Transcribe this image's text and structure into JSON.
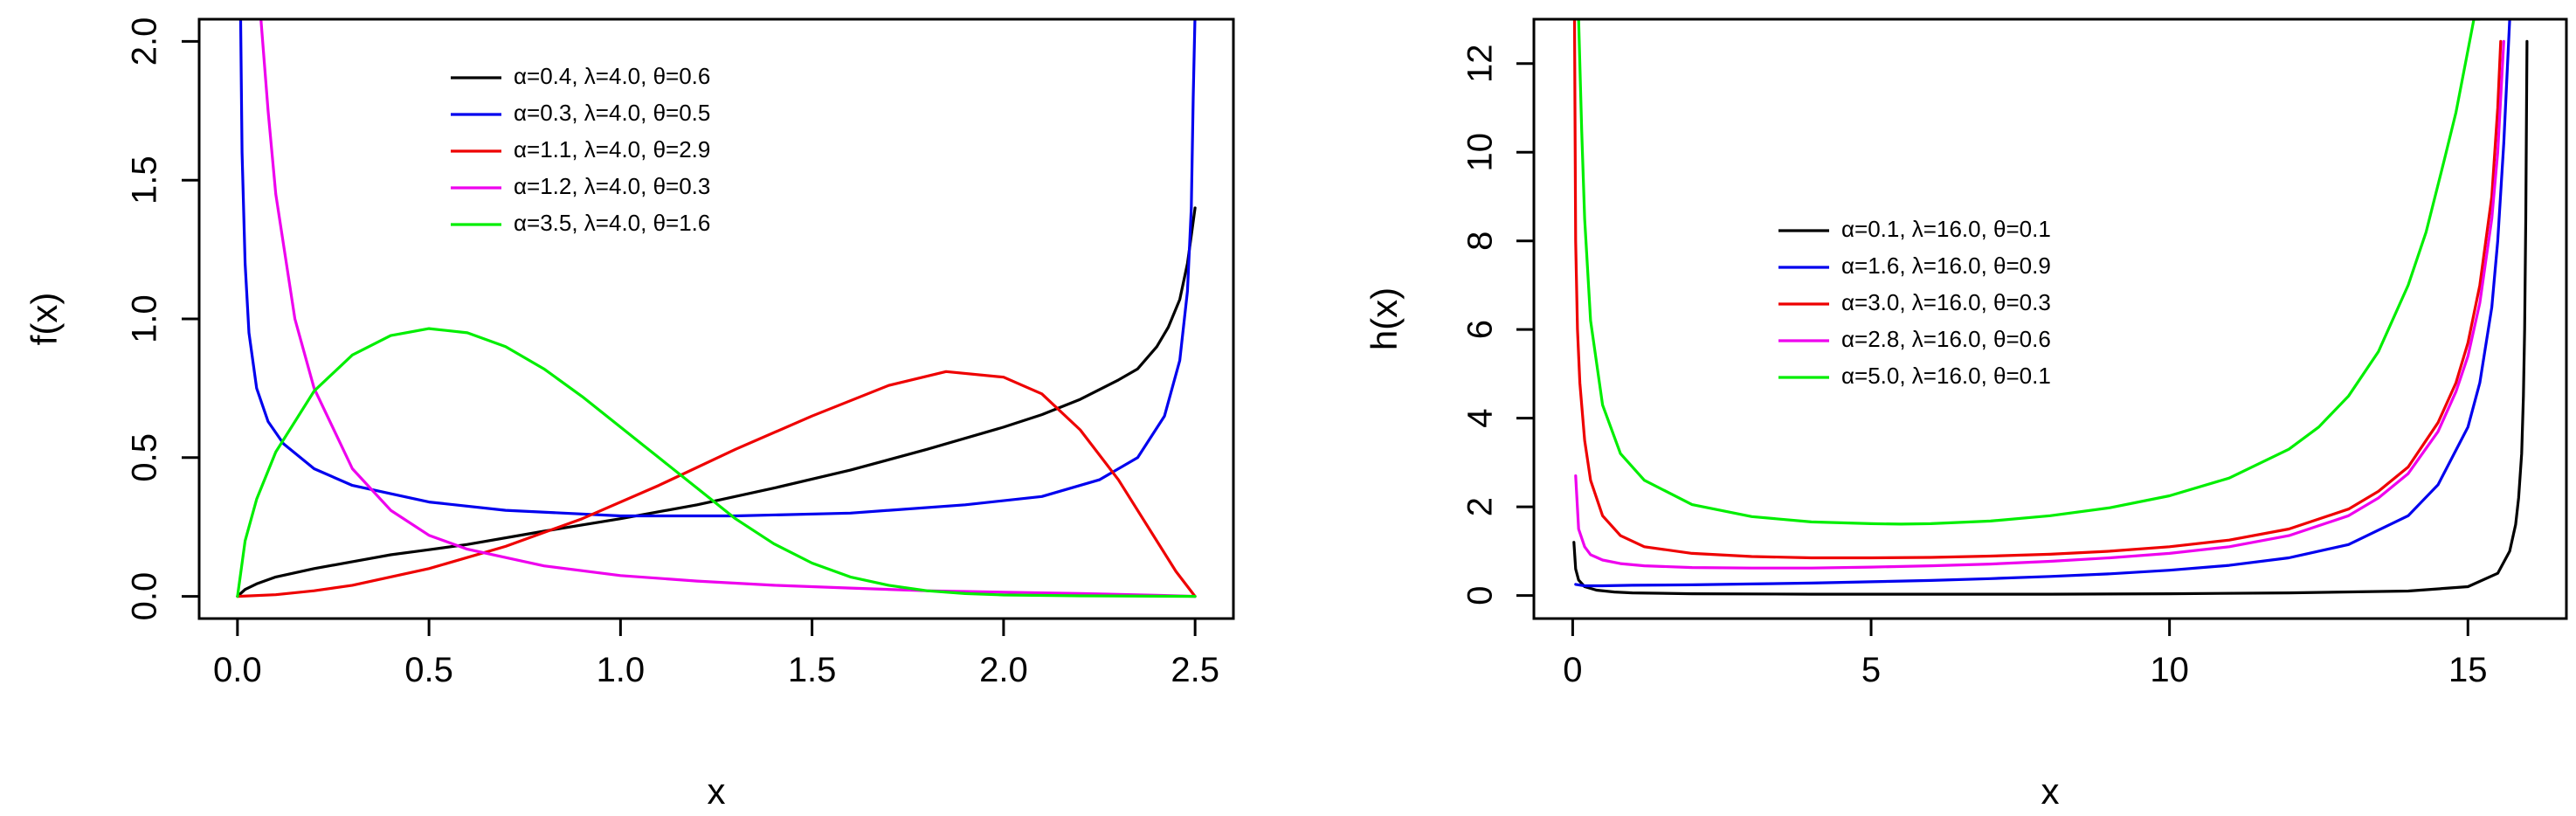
{
  "chart_data": [
    {
      "type": "line",
      "xlabel": "x",
      "ylabel": "f(x)",
      "xlim": [
        -0.1,
        2.6
      ],
      "ylim": [
        -0.08,
        2.08
      ],
      "xticks": [
        "0.0",
        "0.5",
        "1.0",
        "1.5",
        "2.0",
        "2.5"
      ],
      "yticks": [
        "0.0",
        "0.5",
        "1.0",
        "1.5",
        "2.0"
      ],
      "legend_position": "top-center",
      "series": [
        {
          "name": "α=0.4, λ=4.0, θ=0.6",
          "color": "#000000",
          "x": [
            0,
            0.02,
            0.05,
            0.1,
            0.2,
            0.3,
            0.4,
            0.5,
            0.6,
            0.8,
            1.0,
            1.2,
            1.4,
            1.6,
            1.8,
            2.0,
            2.1,
            2.2,
            2.3,
            2.35,
            2.4,
            2.43,
            2.46,
            2.48,
            2.49,
            2.5
          ],
          "y": [
            0,
            0.025,
            0.045,
            0.07,
            0.1,
            0.125,
            0.15,
            0.168,
            0.187,
            0.235,
            0.28,
            0.33,
            0.39,
            0.455,
            0.53,
            0.61,
            0.655,
            0.71,
            0.78,
            0.82,
            0.9,
            0.97,
            1.07,
            1.2,
            1.3,
            1.4
          ]
        },
        {
          "name": "α=0.3, λ=4.0, θ=0.5",
          "color": "#0000ee",
          "x": [
            0.008,
            0.012,
            0.02,
            0.03,
            0.05,
            0.08,
            0.12,
            0.2,
            0.3,
            0.5,
            0.7,
            1.0,
            1.3,
            1.6,
            1.9,
            2.1,
            2.25,
            2.35,
            2.42,
            2.46,
            2.48,
            2.49,
            2.495,
            2.5
          ],
          "y": [
            2.1,
            1.6,
            1.2,
            0.95,
            0.75,
            0.63,
            0.55,
            0.46,
            0.4,
            0.34,
            0.31,
            0.29,
            0.29,
            0.3,
            0.33,
            0.36,
            0.42,
            0.5,
            0.65,
            0.85,
            1.1,
            1.4,
            1.8,
            2.1
          ]
        },
        {
          "name": "α=1.1, λ=4.0, θ=2.9",
          "color": "#ee0000",
          "x": [
            0,
            0.1,
            0.2,
            0.3,
            0.5,
            0.7,
            0.9,
            1.1,
            1.3,
            1.5,
            1.7,
            1.85,
            2.0,
            2.1,
            2.2,
            2.3,
            2.4,
            2.45,
            2.5
          ],
          "y": [
            0,
            0.006,
            0.02,
            0.04,
            0.1,
            0.18,
            0.28,
            0.4,
            0.53,
            0.65,
            0.76,
            0.81,
            0.79,
            0.73,
            0.6,
            0.42,
            0.2,
            0.09,
            0
          ]
        },
        {
          "name": "α=1.2, λ=4.0, θ=0.3",
          "color": "#ee00ee",
          "x": [
            0.06,
            0.08,
            0.1,
            0.15,
            0.2,
            0.3,
            0.4,
            0.5,
            0.6,
            0.8,
            1.0,
            1.2,
            1.4,
            1.6,
            1.8,
            2.0,
            2.2,
            2.4,
            2.5
          ],
          "y": [
            2.1,
            1.75,
            1.45,
            1.0,
            0.75,
            0.46,
            0.31,
            0.22,
            0.17,
            0.11,
            0.075,
            0.055,
            0.04,
            0.03,
            0.02,
            0.015,
            0.01,
            0.004,
            0
          ]
        },
        {
          "name": "α=3.5, λ=4.0, θ=1.6",
          "color": "#00ee00",
          "x": [
            0,
            0.02,
            0.05,
            0.1,
            0.2,
            0.3,
            0.4,
            0.5,
            0.6,
            0.7,
            0.8,
            0.9,
            1.0,
            1.1,
            1.2,
            1.3,
            1.4,
            1.5,
            1.6,
            1.7,
            1.8,
            1.9,
            2.0,
            2.2,
            2.5
          ],
          "y": [
            0,
            0.2,
            0.35,
            0.52,
            0.74,
            0.87,
            0.94,
            0.965,
            0.95,
            0.9,
            0.82,
            0.72,
            0.61,
            0.5,
            0.39,
            0.28,
            0.19,
            0.12,
            0.07,
            0.04,
            0.02,
            0.01,
            0.005,
            0.002,
            0
          ]
        }
      ]
    },
    {
      "type": "line",
      "xlabel": "x",
      "ylabel": "h(x)",
      "xlim": [
        -0.65,
        16.65
      ],
      "ylim": [
        -0.52,
        13.0
      ],
      "xticks": [
        "0",
        "5",
        "10",
        "15"
      ],
      "yticks": [
        "0",
        "2",
        "4",
        "6",
        "8",
        "10",
        "12"
      ],
      "legend_position": "center",
      "series": [
        {
          "name": "α=0.1, λ=16.0, θ=0.1",
          "color": "#000000",
          "x": [
            0.02,
            0.05,
            0.1,
            0.2,
            0.4,
            0.7,
            1.0,
            2,
            4,
            6,
            8,
            10,
            12,
            14,
            15,
            15.5,
            15.7,
            15.8,
            15.85,
            15.9,
            15.93,
            15.95,
            15.97,
            15.99
          ],
          "y": [
            1.2,
            0.6,
            0.35,
            0.2,
            0.12,
            0.08,
            0.06,
            0.04,
            0.03,
            0.03,
            0.03,
            0.04,
            0.06,
            0.1,
            0.2,
            0.5,
            1.0,
            1.6,
            2.2,
            3.2,
            4.5,
            6.0,
            8.5,
            12.5
          ]
        },
        {
          "name": "α=1.6, λ=16.0, θ=0.9",
          "color": "#0000ee",
          "x": [
            0.05,
            0.2,
            0.5,
            1,
            2,
            3,
            4,
            5,
            6,
            7,
            8,
            9,
            10,
            11,
            12,
            13,
            14,
            14.5,
            15,
            15.2,
            15.4,
            15.5,
            15.6,
            15.7
          ],
          "y": [
            0.25,
            0.22,
            0.22,
            0.23,
            0.24,
            0.26,
            0.28,
            0.31,
            0.34,
            0.38,
            0.43,
            0.49,
            0.57,
            0.68,
            0.85,
            1.15,
            1.8,
            2.5,
            3.8,
            4.8,
            6.5,
            8.0,
            10.2,
            13.0
          ]
        },
        {
          "name": "α=3.0, λ=16.0, θ=0.3",
          "color": "#ee0000",
          "x": [
            0.03,
            0.05,
            0.08,
            0.12,
            0.2,
            0.3,
            0.5,
            0.8,
            1.2,
            2,
            3,
            4,
            5,
            6,
            7,
            8,
            9,
            10,
            11,
            12,
            13,
            13.5,
            14,
            14.5,
            14.8,
            15,
            15.2,
            15.4,
            15.5,
            15.55
          ],
          "y": [
            13.0,
            8.0,
            6.0,
            4.8,
            3.5,
            2.6,
            1.8,
            1.35,
            1.1,
            0.95,
            0.88,
            0.85,
            0.85,
            0.86,
            0.89,
            0.93,
            1.0,
            1.1,
            1.25,
            1.5,
            1.95,
            2.35,
            2.9,
            3.9,
            4.8,
            5.7,
            7.0,
            9.0,
            11.0,
            12.5
          ]
        },
        {
          "name": "α=2.8, λ=16.0, θ=0.6",
          "color": "#ee00ee",
          "x": [
            0.05,
            0.1,
            0.2,
            0.3,
            0.5,
            0.8,
            1.2,
            2,
            3,
            4,
            5,
            6,
            7,
            8,
            9,
            10,
            11,
            12,
            13,
            13.5,
            14,
            14.5,
            14.8,
            15,
            15.2,
            15.4,
            15.5,
            15.6
          ],
          "y": [
            2.7,
            1.5,
            1.1,
            0.92,
            0.8,
            0.72,
            0.67,
            0.63,
            0.62,
            0.62,
            0.64,
            0.67,
            0.71,
            0.77,
            0.85,
            0.95,
            1.1,
            1.35,
            1.8,
            2.2,
            2.75,
            3.7,
            4.6,
            5.4,
            6.6,
            8.5,
            10.0,
            12.5
          ]
        },
        {
          "name": "α=5.0, λ=16.0, θ=0.1",
          "color": "#00ee00",
          "x": [
            0.1,
            0.15,
            0.2,
            0.3,
            0.5,
            0.8,
            1.2,
            2,
            3,
            4,
            5,
            5.5,
            6,
            7,
            8,
            9,
            10,
            11,
            12,
            12.5,
            13,
            13.5,
            14,
            14.3,
            14.6,
            14.8,
            15.0,
            15.1,
            15.2
          ],
          "y": [
            13.0,
            10.5,
            8.5,
            6.2,
            4.3,
            3.2,
            2.6,
            2.05,
            1.78,
            1.66,
            1.62,
            1.61,
            1.62,
            1.68,
            1.8,
            1.98,
            2.25,
            2.65,
            3.3,
            3.8,
            4.5,
            5.5,
            7.0,
            8.2,
            9.8,
            10.9,
            12.3,
            13.0,
            13.0
          ]
        }
      ]
    }
  ]
}
